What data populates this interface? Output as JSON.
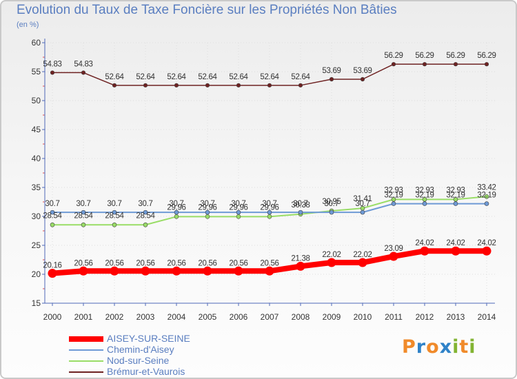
{
  "colors": {
    "title": "#5a7ec0",
    "axis": "#4e68b8",
    "grid": "#dddddd",
    "AISEY-SUR-SEINE": "#ff0000",
    "Chemin-d'Aisey": "#6e9ad6",
    "Nod-sur-Seine": "#99dd66",
    "Brémur-et-Vaurois": "#6e2222"
  },
  "brand": {
    "letters": [
      "P",
      "r",
      "o",
      "x",
      "i",
      "t",
      "i"
    ],
    "colors": [
      "#f08a2a",
      "#2f82c8",
      "#f08a2a",
      "#2f82c8",
      "#82b432",
      "#f08a2a",
      "#82b432"
    ]
  },
  "chart_data": {
    "type": "line",
    "title": "Evolution du Taux de Taxe Foncière sur les Propriétés Non Bâties",
    "subtitle": "(en %)",
    "xlabel": "",
    "ylabel": "",
    "ylim": [
      15,
      60
    ],
    "yticks": [
      15,
      20,
      25,
      30,
      35,
      40,
      45,
      50,
      55,
      60
    ],
    "grid": true,
    "legend_position": "bottom-left",
    "categories": [
      "2000",
      "2001",
      "2002",
      "2003",
      "2004",
      "2005",
      "2006",
      "2007",
      "2008",
      "2009",
      "2010",
      "2011",
      "2012",
      "2013",
      "2014"
    ],
    "series": [
      {
        "name": "AISEY-SUR-SEINE",
        "values": [
          20.16,
          20.56,
          20.56,
          20.56,
          20.56,
          20.56,
          20.56,
          20.56,
          21.38,
          22.02,
          22.02,
          23.09,
          24.02,
          24.02,
          24.02
        ],
        "labels": [
          "20.16",
          "20.56",
          "20.56",
          "20.56",
          "20.56",
          "20.56",
          "20.56",
          "20.56",
          "21.38",
          "22.02",
          "22.02",
          "23.09",
          "24.02",
          "24.02",
          "24.02"
        ]
      },
      {
        "name": "Chemin-d'Aisey",
        "values": [
          30.7,
          30.7,
          30.7,
          30.7,
          30.7,
          30.7,
          30.7,
          30.7,
          30.7,
          30.7,
          30.7,
          32.19,
          32.19,
          32.19,
          32.19
        ],
        "labels": [
          "30.7",
          "30.7",
          "30.7",
          "30.7",
          "30.7",
          "30.7",
          "30.7",
          "30.7",
          "30.7",
          "30.7",
          "30.7",
          "32.19",
          "32.19",
          "32.19",
          "32.19"
        ]
      },
      {
        "name": "Nod-sur-Seine",
        "values": [
          28.54,
          28.54,
          28.54,
          28.54,
          29.96,
          29.96,
          29.96,
          29.96,
          30.38,
          30.95,
          31.41,
          32.93,
          32.93,
          32.93,
          33.42
        ],
        "labels": [
          "28.54",
          "28.54",
          "28.54",
          "28.54",
          "29.96",
          "29.96",
          "29.96",
          "29.96",
          "30.38",
          "30.95",
          "31.41",
          "32.93",
          "32.93",
          "32.93",
          "33.42"
        ]
      },
      {
        "name": "Brémur-et-Vaurois",
        "values": [
          54.83,
          54.83,
          52.64,
          52.64,
          52.64,
          52.64,
          52.64,
          52.64,
          52.64,
          53.69,
          53.69,
          56.29,
          56.29,
          56.29,
          56.29
        ],
        "labels": [
          "54.83",
          "54.83",
          "52.64",
          "52.64",
          "52.64",
          "52.64",
          "52.64",
          "52.64",
          "52.64",
          "53.69",
          "53.69",
          "56.29",
          "56.29",
          "56.29",
          "56.29"
        ]
      }
    ]
  }
}
